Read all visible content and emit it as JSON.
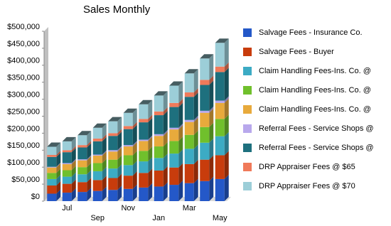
{
  "chart_data": {
    "type": "bar3d_stacked",
    "title": "Sales Monthly",
    "categories": [
      null,
      "Jul",
      null,
      "Sep",
      null,
      "Nov",
      null,
      "Jan",
      null,
      "Mar",
      null,
      "May"
    ],
    "ylim": [
      0,
      500000
    ],
    "yticks": [
      {
        "value": 0,
        "label": "$0"
      },
      {
        "value": 50000,
        "label": "$50,000"
      },
      {
        "value": 100000,
        "label": "$100,000"
      },
      {
        "value": 150000,
        "label": "$150,000"
      },
      {
        "value": 200000,
        "label": "$200,000"
      },
      {
        "value": 250000,
        "label": "$250,000"
      },
      {
        "value": 300000,
        "label": "$300,000"
      },
      {
        "value": 350000,
        "label": "$350,000"
      },
      {
        "value": 400000,
        "label": "$400,000"
      },
      {
        "value": 450000,
        "label": "$450,000"
      },
      {
        "value": 500000,
        "label": "$500,000"
      }
    ],
    "grid": false,
    "series": [
      {
        "name": "Salvage Fees - Insurance Co.",
        "color": "#2458c8",
        "values": [
          22000,
          25000,
          27000,
          30000,
          33000,
          36000,
          40000,
          43000,
          48000,
          53000,
          59000,
          65000
        ]
      },
      {
        "name": "Salvage Fees - Buyer",
        "color": "#c83c0c",
        "values": [
          24000,
          26000,
          29000,
          32000,
          35000,
          39000,
          43000,
          47000,
          51000,
          56000,
          63000,
          70000
        ]
      },
      {
        "name": "Claim Handling Fees-Ins. Co. @",
        "color": "#3cabc4",
        "values": [
          19000,
          21000,
          23000,
          26000,
          28000,
          31000,
          34000,
          37000,
          41000,
          45000,
          50000,
          56000
        ]
      },
      {
        "name": "Claim Handling Fees-Ins. Co. @",
        "color": "#70c02c",
        "values": [
          18000,
          19000,
          21000,
          24000,
          26000,
          29000,
          31000,
          34000,
          37000,
          41000,
          46000,
          51000
        ]
      },
      {
        "name": "Claim Handling Fees-Ins. Co. @",
        "color": "#e8aa3c",
        "values": [
          16000,
          18000,
          20000,
          22000,
          24000,
          26000,
          29000,
          31000,
          34000,
          38000,
          42000,
          47000
        ]
      },
      {
        "name": "Referral Fees - Service Shops @",
        "color": "#b8a8ec",
        "values": [
          2000,
          3000,
          3000,
          3000,
          4000,
          4000,
          4000,
          5000,
          5000,
          6000,
          6000,
          7000
        ]
      },
      {
        "name": "Referral Fees - Service Shops @",
        "color": "#1e707e",
        "values": [
          29000,
          32000,
          35000,
          39000,
          42000,
          47000,
          51000,
          56000,
          61000,
          68000,
          76000,
          84000
        ]
      },
      {
        "name": "DRP Appraiser Fees @ $65",
        "color": "#f07a5a",
        "values": [
          6000,
          6000,
          7000,
          8000,
          8000,
          9000,
          10000,
          11000,
          12000,
          13000,
          15000,
          16000
        ]
      },
      {
        "name": "DRP Appraiser Fees @ $70",
        "color": "#9cced8",
        "values": [
          24000,
          26000,
          29000,
          32000,
          35000,
          39000,
          43000,
          47000,
          51000,
          56000,
          63000,
          70000
        ]
      }
    ]
  }
}
